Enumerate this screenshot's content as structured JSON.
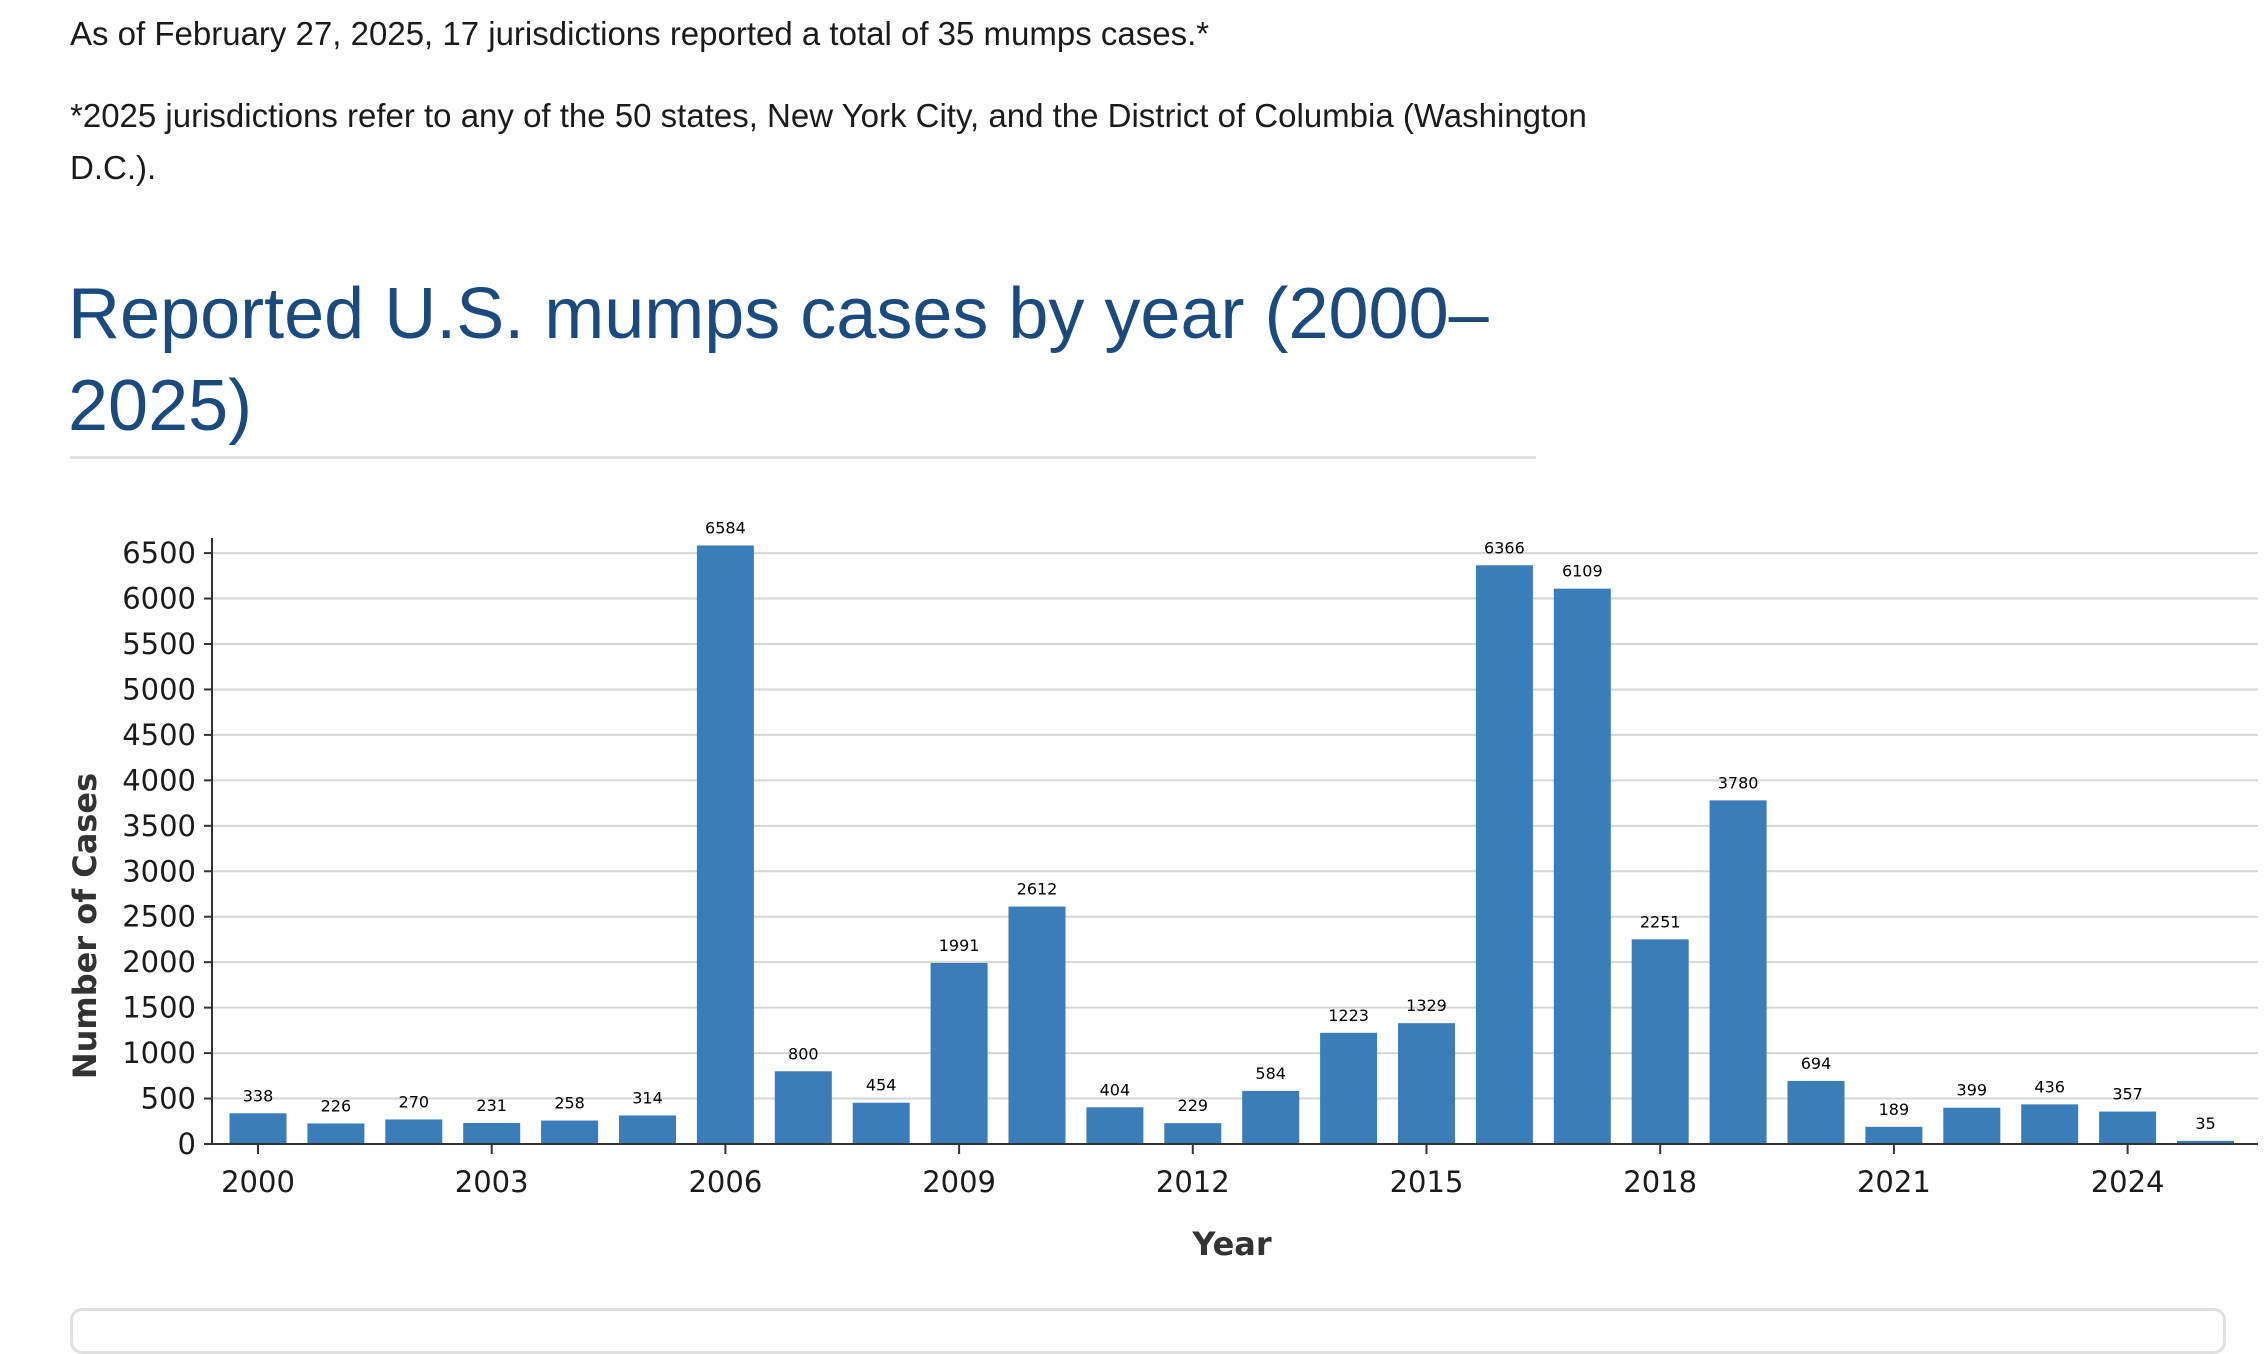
{
  "intro": {
    "summary": "As of February 27, 2025, 17 jurisdictions reported a total of 35 mumps cases.*",
    "footnote": "*2025 jurisdictions refer to any of the 50 states, New York City, and the District of Columbia (Washington D.C.)."
  },
  "colors": {
    "bar": "#3a7db8",
    "title": "#1b4b7e",
    "grid": "#d6d6d6"
  },
  "chart_data": {
    "type": "bar",
    "title": "Reported U.S. mumps cases by year (2000–2025)",
    "xlabel": "Year",
    "ylabel": "Number of Cases",
    "ylim": [
      0,
      6600
    ],
    "yticks": [
      0,
      500,
      1000,
      1500,
      2000,
      2500,
      3000,
      3500,
      4000,
      4500,
      5000,
      5500,
      6000,
      6500
    ],
    "xtick_labels": [
      "2000",
      "2003",
      "2006",
      "2009",
      "2012",
      "2015",
      "2018",
      "2021",
      "2024"
    ],
    "grid": true,
    "categories": [
      "2000",
      "2001",
      "2002",
      "2003",
      "2004",
      "2005",
      "2006",
      "2007",
      "2008",
      "2009",
      "2010",
      "2011",
      "2012",
      "2013",
      "2014",
      "2015",
      "2016",
      "2017",
      "2018",
      "2019",
      "2020",
      "2021",
      "2022",
      "2023",
      "2024",
      "2025"
    ],
    "values": [
      338,
      226,
      270,
      231,
      258,
      314,
      6584,
      800,
      454,
      1991,
      2612,
      404,
      229,
      584,
      1223,
      1329,
      6366,
      6109,
      2251,
      3780,
      694,
      189,
      399,
      436,
      357,
      35
    ]
  }
}
